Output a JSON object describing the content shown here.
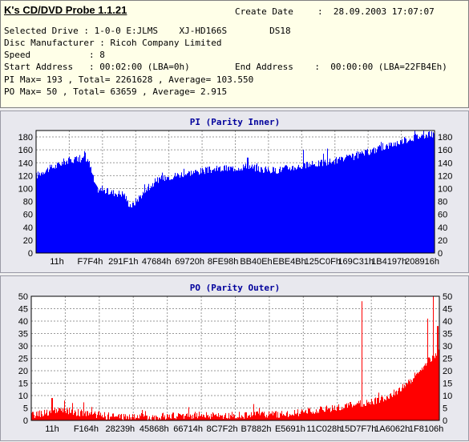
{
  "header": {
    "app_title": "K's CD/DVD Probe 1.1.21",
    "create_date_label": "Create Date",
    "create_date_value": ":  28.09.2003 17:07:07",
    "selected_drive": "Selected Drive : 1-0-0 E:JLMS    XJ-HD166S        DS18",
    "disc_manufacturer": "Disc Manufacturer : Ricoh Company Limited",
    "speed": "Speed           : 8",
    "start_address": "Start Address   : 00:02:00 (LBA=0h)",
    "end_address": "End Address    :  00:00:00 (LBA=22FB4Eh)",
    "pi_summary": "PI Max= 193 , Total= 2261628 , Average= 103.550",
    "po_summary": "PO Max= 50 , Total= 63659 , Average= 2.915"
  },
  "chart_data": [
    {
      "type": "bar",
      "title": "PI (Parity Inner)",
      "color": "#0000ff",
      "ylim": [
        0,
        190
      ],
      "yticks": [
        0,
        20,
        40,
        60,
        80,
        100,
        120,
        140,
        160,
        180
      ],
      "xticks": [
        "11h",
        "F7F4h",
        "291F1h",
        "47684h",
        "69720h",
        "8FE98h",
        "BB40Eh",
        "EBE4Bh",
        "125C0Fh",
        "169C31h",
        "1B4197h",
        "208916h"
      ],
      "grid": true,
      "profile": [
        [
          0,
          120
        ],
        [
          0.02,
          128
        ],
        [
          0.05,
          135
        ],
        [
          0.07,
          142
        ],
        [
          0.1,
          146
        ],
        [
          0.13,
          145
        ],
        [
          0.15,
          100
        ],
        [
          0.18,
          95
        ],
        [
          0.2,
          93
        ],
        [
          0.22,
          92
        ],
        [
          0.23,
          78
        ],
        [
          0.24,
          73
        ],
        [
          0.26,
          88
        ],
        [
          0.28,
          100
        ],
        [
          0.3,
          112
        ],
        [
          0.33,
          118
        ],
        [
          0.36,
          122
        ],
        [
          0.4,
          126
        ],
        [
          0.45,
          130
        ],
        [
          0.5,
          132
        ],
        [
          0.53,
          135
        ],
        [
          0.56,
          130
        ],
        [
          0.6,
          128
        ],
        [
          0.63,
          132
        ],
        [
          0.67,
          135
        ],
        [
          0.7,
          138
        ],
        [
          0.75,
          143
        ],
        [
          0.8,
          150
        ],
        [
          0.85,
          160
        ],
        [
          0.9,
          170
        ],
        [
          0.95,
          180
        ],
        [
          1,
          185
        ]
      ],
      "spikes": [
        [
          0.12,
          158
        ],
        [
          0.53,
          148
        ],
        [
          0.67,
          160
        ],
        [
          0.73,
          162
        ],
        [
          0.95,
          192
        ]
      ]
    },
    {
      "type": "bar",
      "title": "PO (Parity Outer)",
      "color": "#ff0000",
      "ylim": [
        0,
        50
      ],
      "yticks": [
        0,
        5,
        10,
        15,
        20,
        25,
        30,
        35,
        40,
        45,
        50
      ],
      "xticks": [
        "11h",
        "F164h",
        "28239h",
        "45868h",
        "66714h",
        "8C7F2h",
        "B7882h",
        "E5691h",
        "11C028h",
        "15D7F7h",
        "1A6062h",
        "1F8106h"
      ],
      "grid": true,
      "profile": [
        [
          0,
          2
        ],
        [
          0.03,
          3
        ],
        [
          0.07,
          4
        ],
        [
          0.12,
          3
        ],
        [
          0.2,
          1.5
        ],
        [
          0.3,
          1.5
        ],
        [
          0.4,
          2
        ],
        [
          0.5,
          2
        ],
        [
          0.6,
          2.5
        ],
        [
          0.65,
          3
        ],
        [
          0.7,
          4
        ],
        [
          0.75,
          5
        ],
        [
          0.8,
          6.5
        ],
        [
          0.85,
          8
        ],
        [
          0.9,
          12
        ],
        [
          0.93,
          16
        ],
        [
          0.96,
          22
        ],
        [
          1,
          28
        ]
      ],
      "spikes": [
        [
          0.05,
          9
        ],
        [
          0.08,
          8
        ],
        [
          0.1,
          7
        ],
        [
          0.81,
          48
        ],
        [
          0.97,
          41
        ],
        [
          0.985,
          50
        ],
        [
          0.995,
          38
        ]
      ]
    }
  ]
}
